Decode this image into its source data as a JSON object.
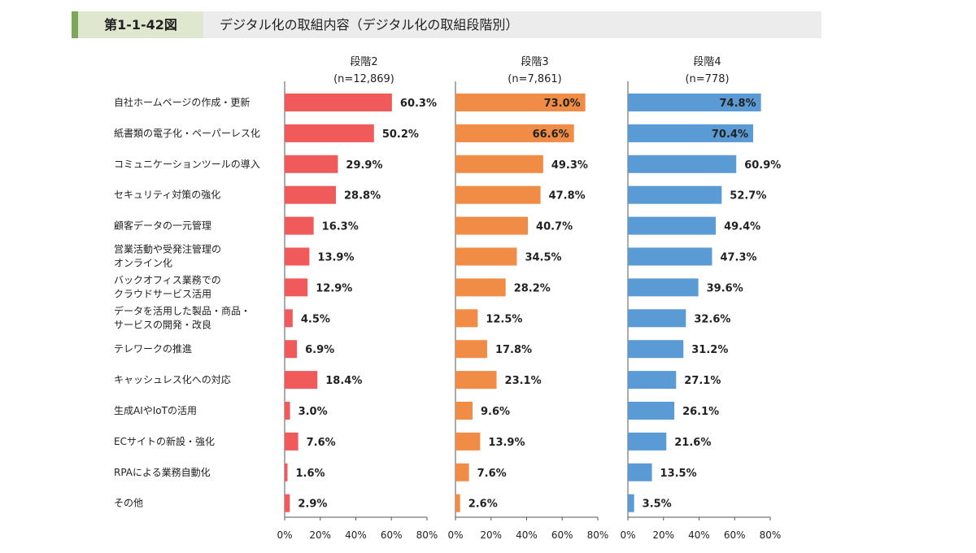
{
  "header": {
    "figure_number": "第1-1-42図",
    "title": "デジタル化の取組内容（デジタル化の取組段階別）"
  },
  "chart_data": {
    "type": "bar",
    "orientation": "horizontal",
    "title": "デジタル化の取組内容（デジタル化の取組段階別）",
    "categories": [
      [
        "自社ホームページの作成・更新"
      ],
      [
        "紙書類の電子化・ペーパーレス化"
      ],
      [
        "コミュニケーションツールの導入"
      ],
      [
        "セキュリティ対策の強化"
      ],
      [
        "顧客データの一元管理"
      ],
      [
        "営業活動や受発注管理の",
        "オンライン化"
      ],
      [
        "バックオフィス業務での",
        "クラウドサービス活用"
      ],
      [
        "データを活用した製品・商品・",
        "サービスの開発・改良"
      ],
      [
        "テレワークの推進"
      ],
      [
        "キャッシュレス化への対応"
      ],
      [
        "生成AIやIoTの活用"
      ],
      [
        "ECサイトの新設・強化"
      ],
      [
        "RPAによる業務自動化"
      ],
      [
        "その他"
      ]
    ],
    "xlim": [
      0,
      80
    ],
    "ticks": [
      "0%",
      "20%",
      "40%",
      "60%",
      "80%"
    ],
    "panels": [
      {
        "name": "段階2",
        "n": "(n=12,869)",
        "color": "#f05a5b",
        "values": [
          60.3,
          50.2,
          29.9,
          28.8,
          16.3,
          13.9,
          12.9,
          4.5,
          6.9,
          18.4,
          3.0,
          7.6,
          1.6,
          2.9
        ]
      },
      {
        "name": "段階3",
        "n": "(n=7,861)",
        "color": "#f08c46",
        "values": [
          73.0,
          66.6,
          49.3,
          47.8,
          40.7,
          34.5,
          28.2,
          12.5,
          17.8,
          23.1,
          9.6,
          13.9,
          7.6,
          2.6
        ]
      },
      {
        "name": "段階4",
        "n": "(n=778)",
        "color": "#5b9bd5",
        "values": [
          74.8,
          70.4,
          60.9,
          52.7,
          49.4,
          47.3,
          39.6,
          32.6,
          31.2,
          27.1,
          26.1,
          21.6,
          13.5,
          3.5
        ]
      }
    ]
  }
}
